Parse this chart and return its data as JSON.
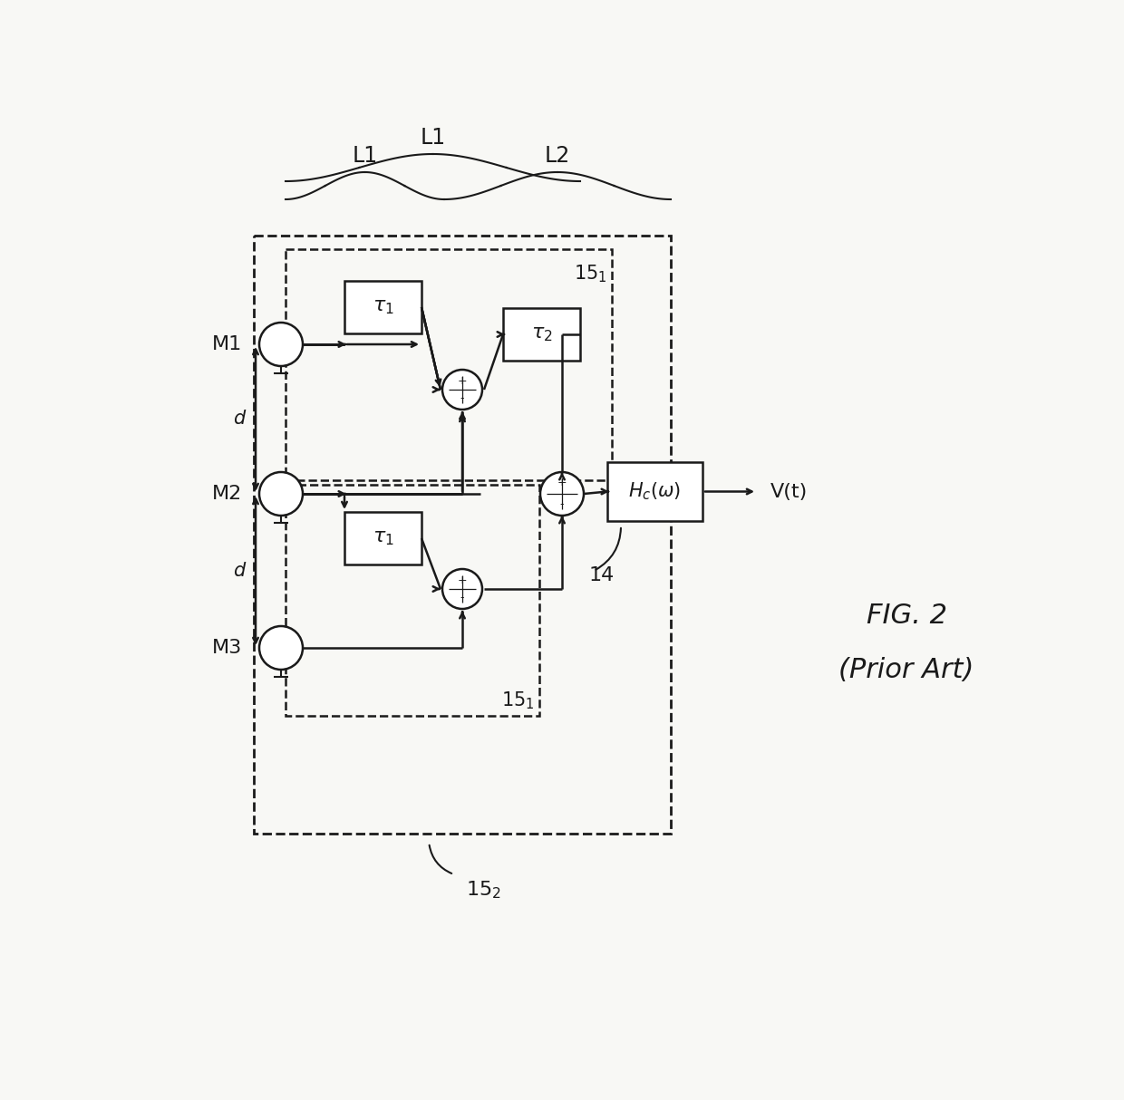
{
  "bg_color": "#f8f8f5",
  "line_color": "#1a1a1a",
  "fig_label": "FIG. 2",
  "fig_sublabel": "(Prior Art)",
  "micro_labels": [
    "M1",
    "M2",
    "M3"
  ],
  "d_label": "d",
  "vt_label": "V(t)",
  "label_14": "14",
  "label_151_top": "15₁",
  "label_151_bot": "15₁",
  "label_152": "15₂",
  "brace_labels": [
    "L1",
    "L1",
    "L2"
  ],
  "brace_label_11": "L1"
}
